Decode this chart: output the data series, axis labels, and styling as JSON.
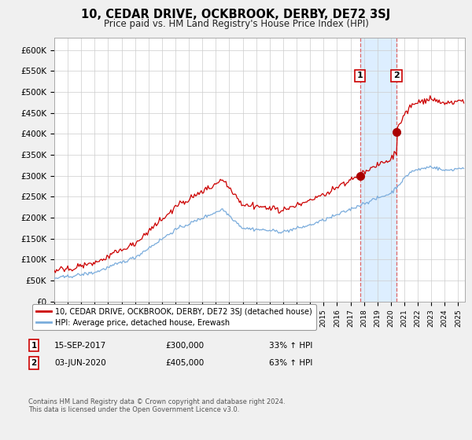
{
  "title": "10, CEDAR DRIVE, OCKBROOK, DERBY, DE72 3SJ",
  "subtitle": "Price paid vs. HM Land Registry's House Price Index (HPI)",
  "ylabel_ticks": [
    "£0",
    "£50K",
    "£100K",
    "£150K",
    "£200K",
    "£250K",
    "£300K",
    "£350K",
    "£400K",
    "£450K",
    "£500K",
    "£550K",
    "£600K"
  ],
  "ytick_vals": [
    0,
    50000,
    100000,
    150000,
    200000,
    250000,
    300000,
    350000,
    400000,
    450000,
    500000,
    550000,
    600000
  ],
  "ylim": [
    0,
    630000
  ],
  "xlim_start": 1995.0,
  "xlim_end": 2025.5,
  "sale1_date": 2017.71,
  "sale1_price": 300000,
  "sale1_label": "1",
  "sale2_date": 2020.42,
  "sale2_price": 405000,
  "sale2_label": "2",
  "hpi_color": "#7aacdc",
  "price_color": "#cc0000",
  "sale_dot_color": "#aa0000",
  "annotation_box_color": "#cc0000",
  "vline_color": "#dd6666",
  "highlight_color": "#ddeeff",
  "legend_label_price": "10, CEDAR DRIVE, OCKBROOK, DERBY, DE72 3SJ (detached house)",
  "legend_label_hpi": "HPI: Average price, detached house, Erewash",
  "footer": "Contains HM Land Registry data © Crown copyright and database right 2024.\nThis data is licensed under the Open Government Licence v3.0.",
  "background_color": "#f0f0f0",
  "plot_bg_color": "#ffffff"
}
